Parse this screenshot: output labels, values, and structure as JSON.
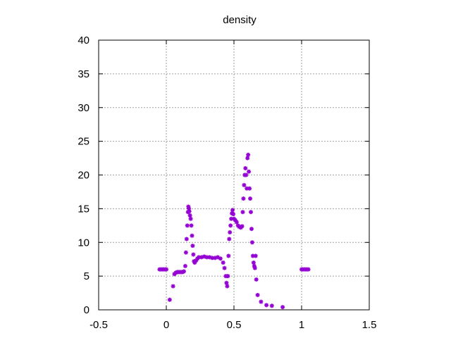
{
  "chart_data": {
    "type": "scatter",
    "title": "density",
    "xlabel": "",
    "ylabel": "",
    "xlim": [
      -0.5,
      1.5
    ],
    "ylim": [
      0,
      40
    ],
    "x_ticks": [
      -0.5,
      0,
      0.5,
      1,
      1.5
    ],
    "x_tick_labels": [
      "-0.5",
      "0",
      "0.5",
      "1",
      "1.5"
    ],
    "y_ticks": [
      0,
      5,
      10,
      15,
      20,
      25,
      30,
      35,
      40
    ],
    "y_tick_labels": [
      "0",
      "5",
      "10",
      "15",
      "20",
      "25",
      "30",
      "35",
      "40"
    ],
    "grid": true,
    "marker_color": "#9400d3",
    "points": [
      [
        -0.05,
        6.0
      ],
      [
        -0.04,
        6.0
      ],
      [
        -0.03,
        6.0
      ],
      [
        -0.02,
        6.0
      ],
      [
        -0.01,
        6.0
      ],
      [
        0.0,
        6.0
      ],
      [
        0.025,
        1.5
      ],
      [
        0.05,
        3.5
      ],
      [
        0.06,
        5.3
      ],
      [
        0.07,
        5.5
      ],
      [
        0.08,
        5.6
      ],
      [
        0.09,
        5.6
      ],
      [
        0.1,
        5.6
      ],
      [
        0.11,
        5.6
      ],
      [
        0.12,
        5.6
      ],
      [
        0.13,
        5.7
      ],
      [
        0.14,
        6.5
      ],
      [
        0.145,
        8.5
      ],
      [
        0.15,
        10.5
      ],
      [
        0.155,
        12.5
      ],
      [
        0.16,
        14.5
      ],
      [
        0.163,
        15.3
      ],
      [
        0.167,
        15.0
      ],
      [
        0.17,
        14.6
      ],
      [
        0.175,
        14.0
      ],
      [
        0.18,
        13.5
      ],
      [
        0.185,
        12.5
      ],
      [
        0.19,
        11.0
      ],
      [
        0.195,
        9.5
      ],
      [
        0.2,
        8.2
      ],
      [
        0.205,
        7.2
      ],
      [
        0.21,
        7.0
      ],
      [
        0.22,
        7.3
      ],
      [
        0.23,
        7.6
      ],
      [
        0.24,
        7.8
      ],
      [
        0.26,
        7.8
      ],
      [
        0.28,
        7.9
      ],
      [
        0.3,
        7.8
      ],
      [
        0.32,
        7.8
      ],
      [
        0.34,
        7.7
      ],
      [
        0.36,
        7.7
      ],
      [
        0.38,
        7.8
      ],
      [
        0.4,
        7.6
      ],
      [
        0.42,
        7.0
      ],
      [
        0.43,
        6.2
      ],
      [
        0.44,
        5.0
      ],
      [
        0.445,
        4.0
      ],
      [
        0.45,
        3.5
      ],
      [
        0.455,
        5.0
      ],
      [
        0.46,
        8.0
      ],
      [
        0.465,
        10.5
      ],
      [
        0.47,
        11.5
      ],
      [
        0.475,
        12.5
      ],
      [
        0.48,
        13.5
      ],
      [
        0.485,
        14.3
      ],
      [
        0.49,
        14.8
      ],
      [
        0.495,
        14.2
      ],
      [
        0.5,
        13.5
      ],
      [
        0.51,
        13.3
      ],
      [
        0.52,
        13.0
      ],
      [
        0.53,
        12.5
      ],
      [
        0.54,
        12.3
      ],
      [
        0.55,
        12.2
      ],
      [
        0.56,
        12.4
      ],
      [
        0.565,
        14.5
      ],
      [
        0.57,
        16.5
      ],
      [
        0.575,
        18.5
      ],
      [
        0.58,
        20.0
      ],
      [
        0.585,
        21.0
      ],
      [
        0.59,
        20.0
      ],
      [
        0.595,
        18.0
      ],
      [
        0.6,
        22.5
      ],
      [
        0.605,
        23.0
      ],
      [
        0.61,
        20.5
      ],
      [
        0.615,
        18.0
      ],
      [
        0.62,
        16.5
      ],
      [
        0.625,
        14.5
      ],
      [
        0.63,
        12.0
      ],
      [
        0.635,
        10.0
      ],
      [
        0.64,
        8.0
      ],
      [
        0.645,
        7.0
      ],
      [
        0.65,
        6.5
      ],
      [
        0.655,
        6.2
      ],
      [
        0.66,
        8.0
      ],
      [
        0.665,
        4.5
      ],
      [
        0.675,
        2.2
      ],
      [
        0.7,
        1.2
      ],
      [
        0.74,
        0.7
      ],
      [
        0.78,
        0.6
      ],
      [
        0.86,
        0.4
      ],
      [
        1.0,
        6.0
      ],
      [
        1.01,
        6.0
      ],
      [
        1.02,
        6.0
      ],
      [
        1.03,
        6.0
      ],
      [
        1.04,
        6.0
      ],
      [
        1.05,
        6.0
      ]
    ]
  }
}
